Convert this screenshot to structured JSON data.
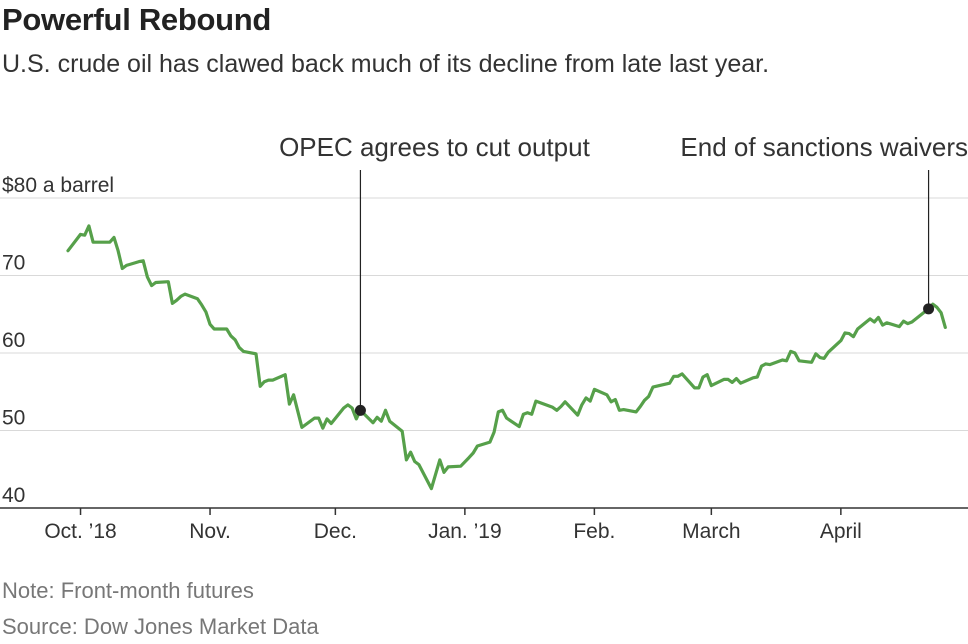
{
  "title": "Powerful Rebound",
  "subtitle": "U.S. crude oil has clawed back much of its decline from late last year.",
  "note": "Note: Front-month futures",
  "source": "Source: Dow Jones Market Data",
  "colors": {
    "line": "#56a04a",
    "grid": "#d9d9d9",
    "axis": "#333333",
    "text": "#333333",
    "marker": "#222222"
  },
  "chart_data": {
    "type": "line",
    "title": "Powerful Rebound",
    "ylabel": "$80 a barrel",
    "ylim": [
      40,
      80
    ],
    "yticks": [
      40,
      50,
      60,
      70,
      80
    ],
    "ytick_labels": [
      "40",
      "50",
      "60",
      "70",
      "$80 a barrel"
    ],
    "xlim": [
      "2018-09-28",
      "2019-04-30"
    ],
    "xticks": [
      {
        "date": "2018-10-01",
        "label": "Oct. ’18"
      },
      {
        "date": "2018-11-01",
        "label": "Nov."
      },
      {
        "date": "2018-12-01",
        "label": "Dec."
      },
      {
        "date": "2019-01-01",
        "label": "Jan. ’19"
      },
      {
        "date": "2019-02-01",
        "label": "Feb."
      },
      {
        "date": "2019-03-01",
        "label": "March"
      },
      {
        "date": "2019-04-01",
        "label": "April"
      }
    ],
    "grid": true,
    "series": [
      {
        "name": "U.S. crude oil front-month futures",
        "points": [
          [
            "2018-09-28",
            73.2
          ],
          [
            "2018-10-01",
            75.3
          ],
          [
            "2018-10-02",
            75.2
          ],
          [
            "2018-10-03",
            76.4
          ],
          [
            "2018-10-04",
            74.3
          ],
          [
            "2018-10-05",
            74.3
          ],
          [
            "2018-10-08",
            74.3
          ],
          [
            "2018-10-09",
            74.9
          ],
          [
            "2018-10-10",
            73.2
          ],
          [
            "2018-10-11",
            70.9
          ],
          [
            "2018-10-12",
            71.3
          ],
          [
            "2018-10-15",
            71.8
          ],
          [
            "2018-10-16",
            71.9
          ],
          [
            "2018-10-17",
            69.8
          ],
          [
            "2018-10-18",
            68.7
          ],
          [
            "2018-10-19",
            69.1
          ],
          [
            "2018-10-22",
            69.2
          ],
          [
            "2018-10-23",
            66.4
          ],
          [
            "2018-10-24",
            66.8
          ],
          [
            "2018-10-25",
            67.3
          ],
          [
            "2018-10-26",
            67.6
          ],
          [
            "2018-10-29",
            67.0
          ],
          [
            "2018-10-30",
            66.2
          ],
          [
            "2018-10-31",
            65.3
          ],
          [
            "2018-11-01",
            63.7
          ],
          [
            "2018-11-02",
            63.1
          ],
          [
            "2018-11-05",
            63.1
          ],
          [
            "2018-11-06",
            62.2
          ],
          [
            "2018-11-07",
            61.7
          ],
          [
            "2018-11-08",
            60.7
          ],
          [
            "2018-11-09",
            60.2
          ],
          [
            "2018-11-12",
            59.9
          ],
          [
            "2018-11-13",
            55.7
          ],
          [
            "2018-11-14",
            56.3
          ],
          [
            "2018-11-15",
            56.5
          ],
          [
            "2018-11-16",
            56.5
          ],
          [
            "2018-11-19",
            57.2
          ],
          [
            "2018-11-20",
            53.4
          ],
          [
            "2018-11-21",
            54.6
          ],
          [
            "2018-11-23",
            50.4
          ],
          [
            "2018-11-26",
            51.6
          ],
          [
            "2018-11-27",
            51.6
          ],
          [
            "2018-11-28",
            50.3
          ],
          [
            "2018-11-29",
            51.5
          ],
          [
            "2018-11-30",
            50.9
          ],
          [
            "2018-12-03",
            52.9
          ],
          [
            "2018-12-04",
            53.3
          ],
          [
            "2018-12-05",
            52.9
          ],
          [
            "2018-12-06",
            51.5
          ],
          [
            "2018-12-07",
            52.6
          ],
          [
            "2018-12-10",
            51.0
          ],
          [
            "2018-12-11",
            51.7
          ],
          [
            "2018-12-12",
            51.2
          ],
          [
            "2018-12-13",
            52.6
          ],
          [
            "2018-12-14",
            51.2
          ],
          [
            "2018-12-17",
            49.9
          ],
          [
            "2018-12-18",
            46.2
          ],
          [
            "2018-12-19",
            47.2
          ],
          [
            "2018-12-20",
            46.0
          ],
          [
            "2018-12-21",
            45.6
          ],
          [
            "2018-12-24",
            42.5
          ],
          [
            "2018-12-26",
            46.2
          ],
          [
            "2018-12-27",
            44.6
          ],
          [
            "2018-12-28",
            45.3
          ],
          [
            "2018-12-31",
            45.4
          ],
          [
            "2019-01-02",
            46.5
          ],
          [
            "2019-01-03",
            47.1
          ],
          [
            "2019-01-04",
            48.0
          ],
          [
            "2019-01-07",
            48.5
          ],
          [
            "2019-01-08",
            49.8
          ],
          [
            "2019-01-09",
            52.4
          ],
          [
            "2019-01-10",
            52.6
          ],
          [
            "2019-01-11",
            51.6
          ],
          [
            "2019-01-14",
            50.5
          ],
          [
            "2019-01-15",
            52.1
          ],
          [
            "2019-01-16",
            52.3
          ],
          [
            "2019-01-17",
            52.1
          ],
          [
            "2019-01-18",
            53.8
          ],
          [
            "2019-01-22",
            53.0
          ],
          [
            "2019-01-23",
            52.6
          ],
          [
            "2019-01-24",
            53.1
          ],
          [
            "2019-01-25",
            53.7
          ],
          [
            "2019-01-28",
            51.99
          ],
          [
            "2019-01-29",
            53.3
          ],
          [
            "2019-01-30",
            54.2
          ],
          [
            "2019-01-31",
            53.8
          ],
          [
            "2019-02-01",
            55.3
          ],
          [
            "2019-02-04",
            54.6
          ],
          [
            "2019-02-05",
            53.7
          ],
          [
            "2019-02-06",
            54.0
          ],
          [
            "2019-02-07",
            52.6
          ],
          [
            "2019-02-08",
            52.7
          ],
          [
            "2019-02-11",
            52.4
          ],
          [
            "2019-02-12",
            53.1
          ],
          [
            "2019-02-13",
            53.9
          ],
          [
            "2019-02-14",
            54.4
          ],
          [
            "2019-02-15",
            55.6
          ],
          [
            "2019-02-19",
            56.1
          ],
          [
            "2019-02-20",
            57.0
          ],
          [
            "2019-02-21",
            57.0
          ],
          [
            "2019-02-22",
            57.3
          ],
          [
            "2019-02-25",
            55.5
          ],
          [
            "2019-02-26",
            55.5
          ],
          [
            "2019-02-27",
            56.9
          ],
          [
            "2019-02-28",
            57.2
          ],
          [
            "2019-03-01",
            55.8
          ],
          [
            "2019-03-04",
            56.6
          ],
          [
            "2019-03-05",
            56.6
          ],
          [
            "2019-03-06",
            56.2
          ],
          [
            "2019-03-07",
            56.7
          ],
          [
            "2019-03-08",
            56.1
          ],
          [
            "2019-03-11",
            56.8
          ],
          [
            "2019-03-12",
            56.9
          ],
          [
            "2019-03-13",
            58.3
          ],
          [
            "2019-03-14",
            58.6
          ],
          [
            "2019-03-15",
            58.5
          ],
          [
            "2019-03-18",
            59.1
          ],
          [
            "2019-03-19",
            59.0
          ],
          [
            "2019-03-20",
            60.2
          ],
          [
            "2019-03-21",
            60.0
          ],
          [
            "2019-03-22",
            59.0
          ],
          [
            "2019-03-25",
            58.8
          ],
          [
            "2019-03-26",
            59.9
          ],
          [
            "2019-03-27",
            59.4
          ],
          [
            "2019-03-28",
            59.3
          ],
          [
            "2019-03-29",
            60.1
          ],
          [
            "2019-04-01",
            61.6
          ],
          [
            "2019-04-02",
            62.6
          ],
          [
            "2019-04-03",
            62.5
          ],
          [
            "2019-04-04",
            62.1
          ],
          [
            "2019-04-05",
            63.1
          ],
          [
            "2019-04-08",
            64.4
          ],
          [
            "2019-04-09",
            64.0
          ],
          [
            "2019-04-10",
            64.6
          ],
          [
            "2019-04-11",
            63.6
          ],
          [
            "2019-04-12",
            63.9
          ],
          [
            "2019-04-15",
            63.4
          ],
          [
            "2019-04-16",
            64.1
          ],
          [
            "2019-04-17",
            63.8
          ],
          [
            "2019-04-18",
            64.0
          ],
          [
            "2019-04-22",
            65.7
          ],
          [
            "2019-04-23",
            66.3
          ],
          [
            "2019-04-24",
            65.9
          ],
          [
            "2019-04-25",
            65.2
          ],
          [
            "2019-04-26",
            63.3
          ]
        ]
      }
    ],
    "annotations": [
      {
        "label": "OPEC agrees to cut output",
        "date": "2018-12-07",
        "value": 52.6
      },
      {
        "label": "End of sanctions waivers",
        "date": "2019-04-22",
        "value": 65.7
      }
    ]
  }
}
